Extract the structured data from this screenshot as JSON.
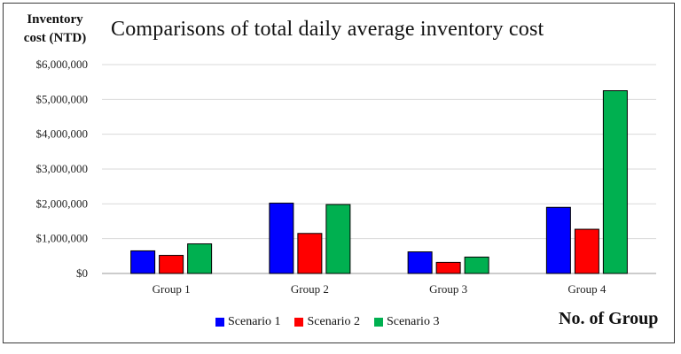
{
  "chart_data": {
    "type": "bar",
    "title": "Comparisons of total daily average inventory cost",
    "ylabel": "Inventory cost (NTD)",
    "ylabel_lines": [
      "Inventory",
      "cost (NTD)"
    ],
    "xlabel": "No. of Group",
    "categories": [
      "Group 1",
      "Group 2",
      "Group 3",
      "Group 4"
    ],
    "yticks": [
      "$0",
      "$1,000,000",
      "$2,000,000",
      "$3,000,000",
      "$4,000,000",
      "$5,000,000",
      "$6,000,000"
    ],
    "ylim": [
      0,
      6000000
    ],
    "grid": true,
    "legend_position": "bottom",
    "series": [
      {
        "name": "Scenario 1",
        "color": "#0000ff",
        "values": [
          650000,
          2020000,
          620000,
          1900000
        ]
      },
      {
        "name": "Scenario 2",
        "color": "#ff0000",
        "values": [
          520000,
          1150000,
          320000,
          1270000
        ]
      },
      {
        "name": "Scenario 3",
        "color": "#00b050",
        "values": [
          850000,
          1980000,
          470000,
          5250000
        ]
      }
    ]
  }
}
